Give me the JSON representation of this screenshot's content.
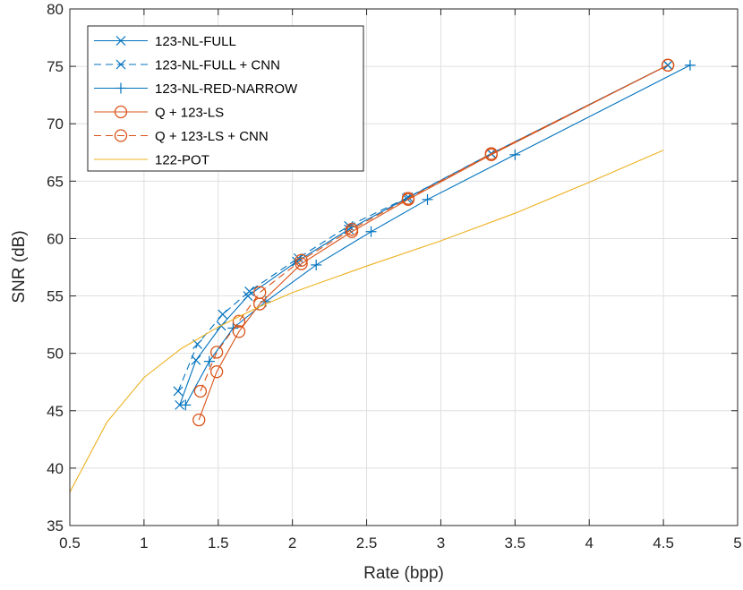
{
  "chart_data": {
    "type": "line",
    "title": "",
    "xlabel": "Rate (bpp)",
    "ylabel": "SNR (dB)",
    "xlim": [
      0.5,
      5
    ],
    "ylim": [
      35,
      80
    ],
    "xticks": [
      0.5,
      1,
      1.5,
      2,
      2.5,
      3,
      3.5,
      4,
      4.5,
      5
    ],
    "xtick_labels": [
      "0.5",
      "1",
      "1.5",
      "2",
      "2.5",
      "3",
      "3.5",
      "4",
      "4.5",
      "5"
    ],
    "yticks": [
      35,
      40,
      45,
      50,
      55,
      60,
      65,
      70,
      75,
      80
    ],
    "ytick_labels": [
      "35",
      "40",
      "45",
      "50",
      "55",
      "60",
      "65",
      "70",
      "75",
      "80"
    ],
    "grid": true,
    "legend_position": "top-left",
    "series": [
      {
        "name": "123-NL-FULL",
        "color": "#0072BD",
        "dash": "solid",
        "marker": "x",
        "x": [
          1.24,
          1.35,
          1.52,
          1.7,
          2.03,
          2.38,
          2.77,
          3.34,
          4.53
        ],
        "y": [
          45.5,
          49.4,
          52.4,
          55.0,
          58.0,
          60.8,
          63.5,
          67.4,
          75.1
        ]
      },
      {
        "name": "123-NL-FULL + CNN",
        "color": "#0072BD",
        "dash": "dashed",
        "marker": "x",
        "x": [
          1.23,
          1.36,
          1.53,
          1.71,
          2.04,
          2.38,
          2.78,
          3.34,
          4.53
        ],
        "y": [
          46.7,
          50.8,
          53.4,
          55.4,
          58.3,
          61.1,
          63.6,
          67.4,
          75.1
        ]
      },
      {
        "name": "123-NL-RED-NARROW",
        "color": "#0072BD",
        "dash": "solid",
        "marker": "+",
        "x": [
          1.28,
          1.44,
          1.6,
          1.82,
          2.16,
          2.53,
          2.91,
          3.5,
          4.68
        ],
        "y": [
          45.5,
          49.3,
          52.2,
          54.5,
          57.7,
          60.6,
          63.4,
          67.3,
          75.1
        ]
      },
      {
        "name": "Q + 123-LS",
        "color": "#D95319",
        "dash": "solid",
        "marker": "o",
        "x": [
          1.37,
          1.49,
          1.64,
          1.78,
          2.06,
          2.4,
          2.78,
          3.34,
          4.53
        ],
        "y": [
          44.2,
          48.4,
          51.9,
          54.3,
          57.8,
          60.6,
          63.4,
          67.3,
          75.1
        ]
      },
      {
        "name": "Q + 123-LS + CNN",
        "color": "#D95319",
        "dash": "dashed",
        "marker": "o",
        "x": [
          1.38,
          1.49,
          1.64,
          1.78,
          2.06,
          2.4,
          2.78,
          3.34,
          4.53
        ],
        "y": [
          46.7,
          50.1,
          52.8,
          55.3,
          58.1,
          60.8,
          63.5,
          67.4,
          75.1
        ]
      },
      {
        "name": "122-POT",
        "color": "#EDB120",
        "dash": "solid",
        "marker": "none",
        "x": [
          0.5,
          0.75,
          1.0,
          1.25,
          1.5,
          1.75,
          2.0,
          2.5,
          3.0,
          3.5,
          4.0,
          4.5
        ],
        "y": [
          37.9,
          44.0,
          47.9,
          50.4,
          52.3,
          53.9,
          55.3,
          57.6,
          59.8,
          62.2,
          64.9,
          67.7
        ]
      }
    ]
  }
}
